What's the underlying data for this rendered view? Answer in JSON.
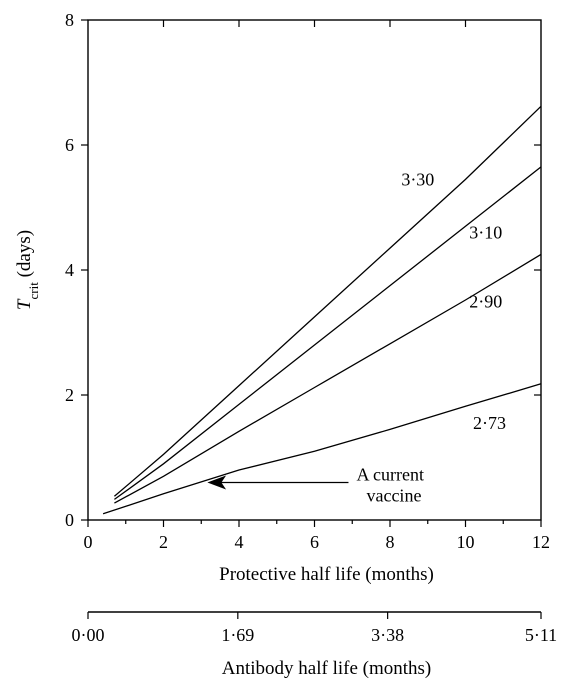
{
  "chart_data": {
    "type": "line",
    "title": "",
    "xlabel": "Protective half life (months)",
    "ylabel_main": "T",
    "ylabel_sub": "crit",
    "ylabel_rest": " (days)",
    "xlim": [
      0,
      12
    ],
    "ylim": [
      0,
      8
    ],
    "x_ticks": [
      0,
      2,
      4,
      6,
      8,
      10,
      12
    ],
    "y_ticks": [
      0,
      2,
      4,
      6,
      8
    ],
    "grid": false,
    "series": [
      {
        "name": "3·30",
        "x": [
          0.7,
          2,
          4,
          6,
          8,
          10,
          12
        ],
        "y": [
          0.38,
          1.05,
          2.15,
          3.25,
          4.35,
          5.45,
          6.62
        ]
      },
      {
        "name": "3·10",
        "x": [
          0.7,
          2,
          4,
          6,
          8,
          10,
          12
        ],
        "y": [
          0.33,
          0.9,
          1.85,
          2.8,
          3.75,
          4.7,
          5.65
        ]
      },
      {
        "name": "2·90",
        "x": [
          0.7,
          2,
          4,
          6,
          8,
          10,
          12
        ],
        "y": [
          0.27,
          0.7,
          1.42,
          2.12,
          2.82,
          3.52,
          4.25
        ]
      },
      {
        "name": "2·73",
        "x": [
          0.4,
          2,
          4,
          6,
          8,
          10,
          12
        ],
        "y": [
          0.1,
          0.42,
          0.8,
          1.1,
          1.45,
          1.82,
          2.18
        ]
      }
    ],
    "series_label_anchor_x": [
      8.3,
      10.1,
      10.1,
      10.2
    ],
    "series_label_anchor_y": [
      5.45,
      4.6,
      3.5,
      1.55
    ],
    "annotation": {
      "lines": [
        "A current",
        "vaccine"
      ],
      "arrow_tip": [
        3.2,
        0.6
      ],
      "arrow_tail": [
        6.9,
        0.6
      ]
    },
    "secondary_axis": {
      "label": "Antibody half life (months)",
      "tick_labels": [
        "0·00",
        "1·69",
        "3·38",
        "5·11"
      ],
      "tick_values": [
        0,
        1.69,
        3.38,
        5.11
      ],
      "range": [
        0,
        5.11
      ]
    }
  }
}
